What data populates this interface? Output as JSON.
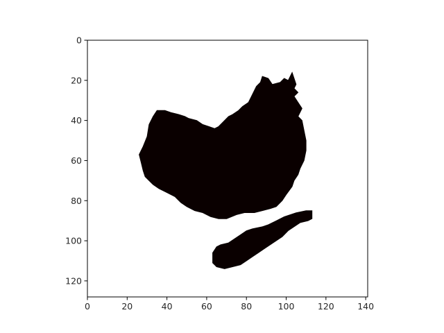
{
  "chart_data": {
    "type": "heatmap",
    "title": "",
    "xlabel": "",
    "ylabel": "",
    "xlim": [
      0,
      141
    ],
    "ylim": [
      128,
      0
    ],
    "x_ticks": [
      0,
      20,
      40,
      60,
      80,
      100,
      120,
      140
    ],
    "y_ticks": [
      0,
      20,
      40,
      60,
      80,
      100,
      120
    ],
    "grid": false,
    "colors": {
      "mask": "#0a0000",
      "background": "#ffffff",
      "axes": "#000000"
    },
    "regions": [
      {
        "name": "",
        "polygon": [
          [
            88,
            18
          ],
          [
            91,
            19
          ],
          [
            93,
            22
          ],
          [
            97,
            21
          ],
          [
            99,
            19
          ],
          [
            101,
            20
          ],
          [
            103,
            16
          ],
          [
            104,
            19
          ],
          [
            105,
            22
          ],
          [
            104,
            24
          ],
          [
            106,
            26
          ],
          [
            104,
            28
          ],
          [
            106,
            31
          ],
          [
            108,
            34
          ],
          [
            106,
            38
          ],
          [
            108,
            40
          ],
          [
            109,
            45
          ],
          [
            110,
            50
          ],
          [
            110,
            55
          ],
          [
            109,
            60
          ],
          [
            107,
            64
          ],
          [
            106,
            67
          ],
          [
            104,
            70
          ],
          [
            103,
            73
          ],
          [
            100,
            77
          ],
          [
            98,
            80
          ],
          [
            95,
            83
          ],
          [
            92,
            84
          ],
          [
            88,
            85
          ],
          [
            84,
            86
          ],
          [
            79,
            86
          ],
          [
            75,
            87
          ],
          [
            70,
            89
          ],
          [
            66,
            89
          ],
          [
            62,
            88
          ],
          [
            58,
            86
          ],
          [
            54,
            85
          ],
          [
            50,
            83
          ],
          [
            47,
            81
          ],
          [
            44,
            78
          ],
          [
            40,
            76
          ],
          [
            36,
            74
          ],
          [
            33,
            72
          ],
          [
            31,
            70
          ],
          [
            29,
            68
          ],
          [
            28,
            65
          ],
          [
            27,
            61
          ],
          [
            26,
            57
          ],
          [
            28,
            53
          ],
          [
            30,
            48
          ],
          [
            31,
            42
          ],
          [
            33,
            38
          ],
          [
            35,
            35
          ],
          [
            39,
            35
          ],
          [
            42,
            36
          ],
          [
            46,
            37
          ],
          [
            49,
            38
          ],
          [
            51,
            39
          ],
          [
            55,
            40
          ],
          [
            58,
            42
          ],
          [
            61,
            43
          ],
          [
            64,
            44
          ],
          [
            66,
            43
          ],
          [
            68,
            41
          ],
          [
            71,
            38
          ],
          [
            73,
            37
          ],
          [
            76,
            35
          ],
          [
            78,
            33
          ],
          [
            81,
            31
          ],
          [
            83,
            27
          ],
          [
            85,
            23
          ],
          [
            87,
            21
          ]
        ]
      },
      {
        "name": "",
        "polygon": [
          [
            105,
            86
          ],
          [
            110,
            85
          ],
          [
            113,
            85
          ],
          [
            113,
            89
          ],
          [
            111,
            90
          ],
          [
            107,
            91
          ],
          [
            104,
            93
          ],
          [
            101,
            95
          ],
          [
            98,
            98
          ],
          [
            95,
            100
          ],
          [
            92,
            102
          ],
          [
            89,
            104
          ],
          [
            86,
            106
          ],
          [
            83,
            108
          ],
          [
            80,
            110
          ],
          [
            77,
            112
          ],
          [
            73,
            113
          ],
          [
            69,
            114
          ],
          [
            65,
            113
          ],
          [
            63,
            111
          ],
          [
            63,
            106
          ],
          [
            65,
            103
          ],
          [
            67,
            102
          ],
          [
            71,
            101
          ],
          [
            74,
            99
          ],
          [
            77,
            97
          ],
          [
            80,
            95
          ],
          [
            83,
            94
          ],
          [
            88,
            93
          ],
          [
            91,
            92
          ],
          [
            95,
            90
          ],
          [
            99,
            88
          ],
          [
            102,
            87
          ]
        ]
      }
    ]
  }
}
